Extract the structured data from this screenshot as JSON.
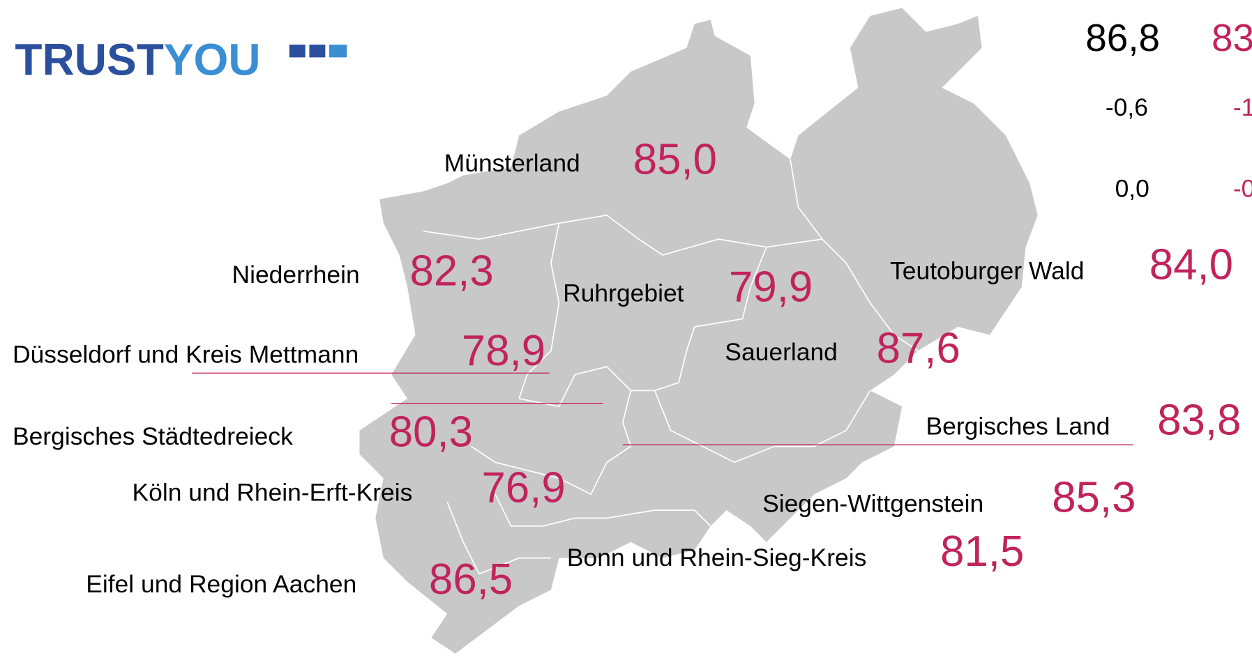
{
  "logo": {
    "part1": "TRUST",
    "part2": "YOU"
  },
  "summary": {
    "row1": [
      "86,8",
      "83"
    ],
    "row2": [
      "-0,6",
      "-1"
    ],
    "row3": [
      "0,0",
      "-0"
    ]
  },
  "regions": [
    {
      "name": "Münsterland",
      "score": "85,0"
    },
    {
      "name": "Niederrhein",
      "score": "82,3"
    },
    {
      "name": "Ruhrgebiet",
      "score": "79,9"
    },
    {
      "name": "Teutoburger Wald",
      "score": "84,0"
    },
    {
      "name": "Düsseldorf und Kreis Mettmann",
      "score": "78,9"
    },
    {
      "name": "Sauerland",
      "score": "87,6"
    },
    {
      "name": "Bergisches Land",
      "score": "83,8"
    },
    {
      "name": "Bergisches Städtedreieck",
      "score": "80,3"
    },
    {
      "name": "Köln und Rhein-Erft-Kreis",
      "score": "76,9"
    },
    {
      "name": "Siegen-Wittgenstein",
      "score": "85,3"
    },
    {
      "name": "Bonn und Rhein-Sieg-Kreis",
      "score": "81,5"
    },
    {
      "name": "Eifel und Region Aachen",
      "score": "86,5"
    }
  ]
}
